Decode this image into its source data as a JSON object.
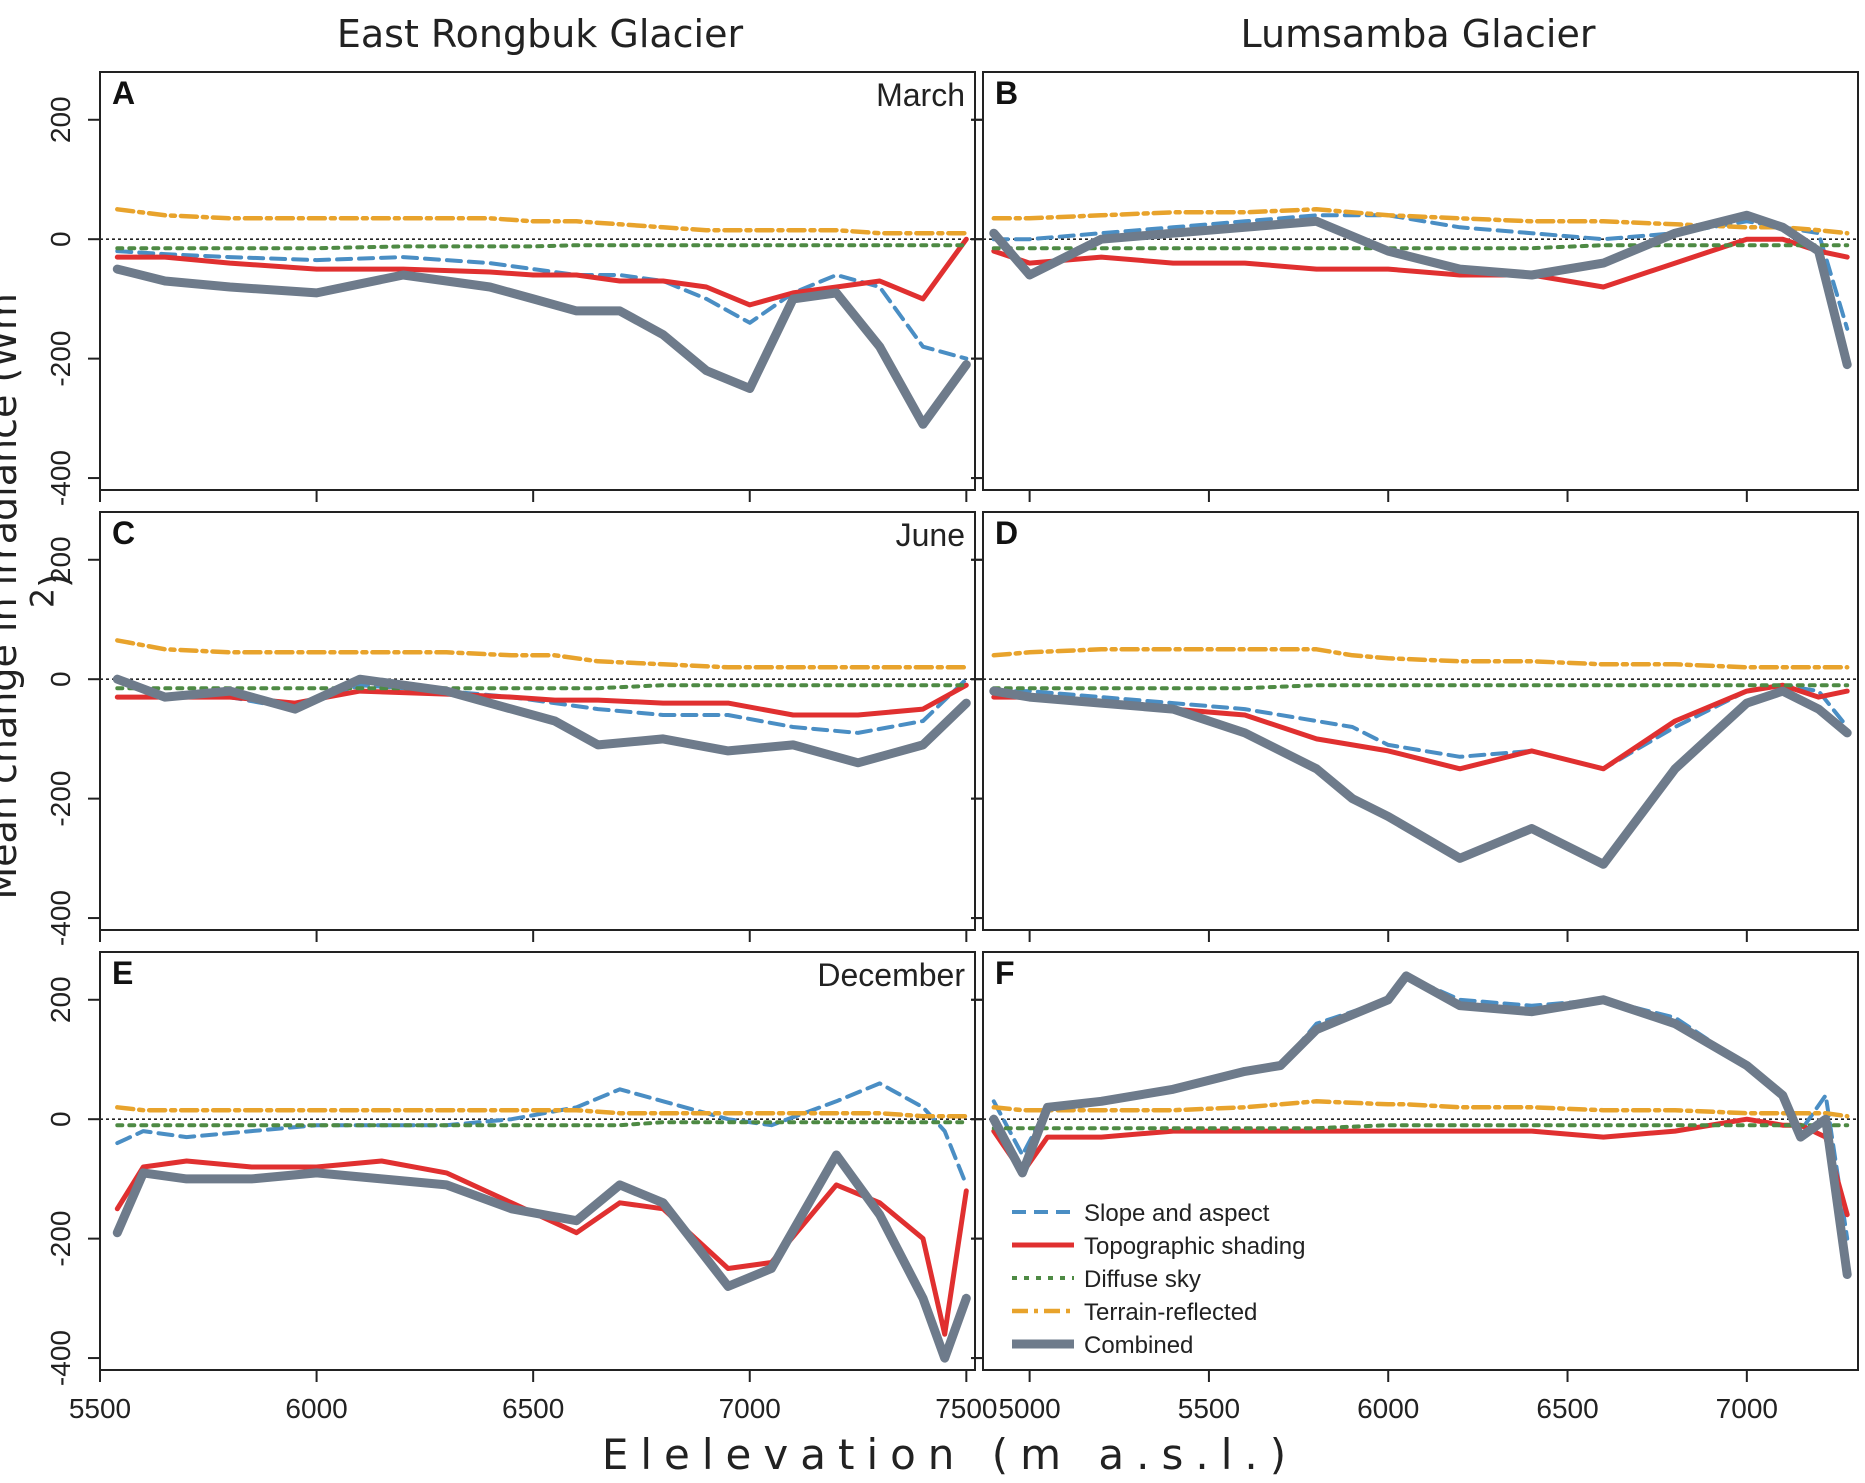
{
  "column_titles": [
    "East Rongbuk Glacier",
    "Lumsamba Glacier"
  ],
  "ylabel": "Mean change in irradiance (Wm",
  "ylabel_sup": "-2",
  "ylabel_tail": ")",
  "xlabel": "Elelevation   (m a.s.l.)",
  "colors": {
    "slope": "#4a8ec4",
    "shading": "#e03030",
    "diffuse": "#4e8a44",
    "terrain": "#e8a32c",
    "combined": "#6e7b8b"
  },
  "legend": {
    "entries": [
      "Slope and aspect",
      "Topographic shading",
      "Diffuse sky",
      "Terrain-reflected",
      "Combined"
    ]
  },
  "chart_data": [
    {
      "type": "line",
      "panel": "A",
      "month": "March",
      "glacier": "East Rongbuk Glacier",
      "x": [
        5540,
        5650,
        5800,
        6000,
        6200,
        6400,
        6500,
        6600,
        6700,
        6800,
        6900,
        7000,
        7100,
        7200,
        7300,
        7400,
        7500
      ],
      "series": [
        {
          "name": "Slope and aspect",
          "values": [
            -20,
            -25,
            -30,
            -35,
            -30,
            -40,
            -50,
            -60,
            -60,
            -70,
            -100,
            -140,
            -90,
            -60,
            -80,
            -180,
            -200
          ]
        },
        {
          "name": "Topographic shading",
          "values": [
            -30,
            -30,
            -40,
            -50,
            -50,
            -55,
            -60,
            -60,
            -70,
            -70,
            -80,
            -110,
            -90,
            -80,
            -70,
            -100,
            0
          ]
        },
        {
          "name": "Diffuse sky",
          "values": [
            -15,
            -15,
            -15,
            -15,
            -12,
            -12,
            -12,
            -10,
            -10,
            -10,
            -10,
            -10,
            -10,
            -10,
            -10,
            -10,
            -10
          ]
        },
        {
          "name": "Terrain-reflected",
          "values": [
            50,
            40,
            35,
            35,
            35,
            35,
            30,
            30,
            25,
            20,
            15,
            15,
            15,
            15,
            10,
            10,
            10
          ]
        },
        {
          "name": "Combined",
          "values": [
            -50,
            -70,
            -80,
            -90,
            -60,
            -80,
            -100,
            -120,
            -120,
            -160,
            -220,
            -250,
            -100,
            -90,
            -180,
            -310,
            -210
          ]
        }
      ],
      "xlim": [
        5500,
        7520
      ],
      "ylim": [
        -420,
        280
      ],
      "yticks": [
        -400,
        -200,
        0,
        200
      ],
      "xticks": [
        5500,
        6000,
        6500,
        7000,
        7500
      ]
    },
    {
      "type": "line",
      "panel": "B",
      "month": "",
      "glacier": "Lumsamba Glacier",
      "x": [
        4900,
        5000,
        5200,
        5400,
        5600,
        5800,
        6000,
        6200,
        6400,
        6600,
        6800,
        7000,
        7100,
        7200,
        7280
      ],
      "series": [
        {
          "name": "Slope and aspect",
          "values": [
            0,
            0,
            10,
            20,
            30,
            40,
            40,
            20,
            10,
            0,
            10,
            30,
            20,
            10,
            -150
          ]
        },
        {
          "name": "Topographic shading",
          "values": [
            -20,
            -40,
            -30,
            -40,
            -40,
            -50,
            -50,
            -60,
            -60,
            -80,
            -40,
            0,
            0,
            -20,
            -30
          ]
        },
        {
          "name": "Diffuse sky",
          "values": [
            -15,
            -15,
            -15,
            -15,
            -15,
            -15,
            -15,
            -15,
            -15,
            -10,
            -10,
            -10,
            -10,
            -10,
            -10
          ]
        },
        {
          "name": "Terrain-reflected",
          "values": [
            35,
            35,
            40,
            45,
            45,
            50,
            40,
            35,
            30,
            30,
            25,
            20,
            20,
            15,
            10
          ]
        },
        {
          "name": "Combined",
          "values": [
            10,
            -60,
            0,
            10,
            20,
            30,
            -20,
            -50,
            -60,
            -40,
            10,
            40,
            20,
            -20,
            -210
          ]
        }
      ],
      "xlim": [
        4870,
        7310
      ],
      "ylim": [
        -420,
        280
      ],
      "yticks": [
        -400,
        -200,
        0,
        200
      ],
      "xticks": [
        5000,
        5500,
        6000,
        6500,
        7000
      ]
    },
    {
      "type": "line",
      "panel": "C",
      "month": "June",
      "glacier": "East Rongbuk Glacier",
      "x": [
        5540,
        5650,
        5800,
        5950,
        6100,
        6300,
        6450,
        6550,
        6650,
        6800,
        6950,
        7100,
        7250,
        7400,
        7500
      ],
      "series": [
        {
          "name": "Slope and aspect",
          "values": [
            -30,
            -30,
            -30,
            -50,
            -10,
            -20,
            -30,
            -40,
            -50,
            -60,
            -60,
            -80,
            -90,
            -70,
            0
          ]
        },
        {
          "name": "Topographic shading",
          "values": [
            -30,
            -30,
            -30,
            -40,
            -20,
            -25,
            -30,
            -35,
            -35,
            -40,
            -40,
            -60,
            -60,
            -50,
            -10
          ]
        },
        {
          "name": "Diffuse sky",
          "values": [
            -15,
            -15,
            -15,
            -15,
            -15,
            -15,
            -15,
            -15,
            -15,
            -10,
            -10,
            -10,
            -10,
            -10,
            -10
          ]
        },
        {
          "name": "Terrain-reflected",
          "values": [
            65,
            50,
            45,
            45,
            45,
            45,
            40,
            40,
            30,
            25,
            20,
            20,
            20,
            20,
            20
          ]
        },
        {
          "name": "Combined",
          "values": [
            0,
            -30,
            -20,
            -50,
            0,
            -20,
            -50,
            -70,
            -110,
            -100,
            -120,
            -110,
            -140,
            -110,
            -40
          ]
        }
      ],
      "xlim": [
        5500,
        7520
      ],
      "ylim": [
        -420,
        280
      ],
      "yticks": [
        -400,
        -200,
        0,
        200
      ],
      "xticks": [
        5500,
        6000,
        6500,
        7000,
        7500
      ]
    },
    {
      "type": "line",
      "panel": "D",
      "month": "",
      "glacier": "Lumsamba Glacier",
      "x": [
        4900,
        5000,
        5200,
        5400,
        5600,
        5800,
        5900,
        6000,
        6200,
        6400,
        6600,
        6800,
        7000,
        7100,
        7200,
        7280
      ],
      "series": [
        {
          "name": "Slope and aspect",
          "values": [
            -20,
            -20,
            -30,
            -40,
            -50,
            -70,
            -80,
            -110,
            -130,
            -120,
            -150,
            -80,
            -20,
            -10,
            -20,
            -80
          ]
        },
        {
          "name": "Topographic shading",
          "values": [
            -30,
            -30,
            -40,
            -50,
            -60,
            -100,
            -110,
            -120,
            -150,
            -120,
            -150,
            -70,
            -20,
            -10,
            -30,
            -20
          ]
        },
        {
          "name": "Diffuse sky",
          "values": [
            -15,
            -15,
            -15,
            -15,
            -15,
            -10,
            -10,
            -10,
            -10,
            -10,
            -10,
            -10,
            -10,
            -10,
            -10,
            -10
          ]
        },
        {
          "name": "Terrain-reflected",
          "values": [
            40,
            45,
            50,
            50,
            50,
            50,
            40,
            35,
            30,
            30,
            25,
            25,
            20,
            20,
            20,
            20
          ]
        },
        {
          "name": "Combined",
          "values": [
            -20,
            -30,
            -40,
            -50,
            -90,
            -150,
            -200,
            -230,
            -300,
            -250,
            -310,
            -150,
            -40,
            -20,
            -50,
            -90
          ]
        }
      ],
      "xlim": [
        4870,
        7310
      ],
      "ylim": [
        -420,
        280
      ],
      "yticks": [
        -400,
        -200,
        0,
        200
      ],
      "xticks": [
        5000,
        5500,
        6000,
        6500,
        7000
      ]
    },
    {
      "type": "line",
      "panel": "E",
      "month": "December",
      "glacier": "East Rongbuk Glacier",
      "x": [
        5540,
        5600,
        5700,
        5850,
        6000,
        6150,
        6300,
        6450,
        6600,
        6700,
        6800,
        6950,
        7050,
        7200,
        7300,
        7400,
        7450,
        7500
      ],
      "series": [
        {
          "name": "Slope and aspect",
          "values": [
            -40,
            -20,
            -30,
            -20,
            -10,
            -10,
            -10,
            0,
            20,
            50,
            30,
            0,
            -10,
            30,
            60,
            20,
            -20,
            -110
          ]
        },
        {
          "name": "Topographic shading",
          "values": [
            -150,
            -80,
            -70,
            -80,
            -80,
            -70,
            -90,
            -140,
            -190,
            -140,
            -150,
            -250,
            -240,
            -110,
            -140,
            -200,
            -360,
            -120
          ]
        },
        {
          "name": "Diffuse sky",
          "values": [
            -10,
            -10,
            -10,
            -10,
            -10,
            -10,
            -10,
            -10,
            -10,
            -10,
            -5,
            -5,
            -5,
            -5,
            -5,
            -5,
            -5,
            -5
          ]
        },
        {
          "name": "Terrain-reflected",
          "values": [
            20,
            15,
            15,
            15,
            15,
            15,
            15,
            15,
            15,
            10,
            10,
            10,
            10,
            10,
            10,
            5,
            5,
            5
          ]
        },
        {
          "name": "Combined",
          "values": [
            -190,
            -90,
            -100,
            -100,
            -90,
            -100,
            -110,
            -150,
            -170,
            -110,
            -140,
            -280,
            -250,
            -60,
            -160,
            -300,
            -400,
            -300
          ]
        }
      ],
      "xlim": [
        5500,
        7520
      ],
      "ylim": [
        -420,
        280
      ],
      "yticks": [
        -400,
        -200,
        0,
        200
      ],
      "xticks": [
        5500,
        6000,
        6500,
        7000,
        7500
      ]
    },
    {
      "type": "line",
      "panel": "F",
      "month": "",
      "glacier": "Lumsamba Glacier",
      "x": [
        4900,
        4980,
        5050,
        5200,
        5400,
        5600,
        5700,
        5800,
        6000,
        6050,
        6200,
        6400,
        6600,
        6800,
        7000,
        7100,
        7150,
        7220,
        7280
      ],
      "series": [
        {
          "name": "Slope and aspect",
          "values": [
            30,
            -60,
            20,
            30,
            50,
            80,
            90,
            160,
            200,
            240,
            200,
            190,
            200,
            170,
            90,
            40,
            -20,
            40,
            -200
          ]
        },
        {
          "name": "Topographic shading",
          "values": [
            -20,
            -90,
            -30,
            -30,
            -20,
            -20,
            -20,
            -20,
            -20,
            -20,
            -20,
            -20,
            -30,
            -20,
            0,
            -10,
            -10,
            -30,
            -160
          ]
        },
        {
          "name": "Diffuse sky",
          "values": [
            -15,
            -15,
            -15,
            -15,
            -15,
            -15,
            -15,
            -15,
            -10,
            -10,
            -10,
            -10,
            -10,
            -10,
            -10,
            -10,
            -10,
            -10,
            -10
          ]
        },
        {
          "name": "Terrain-reflected",
          "values": [
            20,
            15,
            15,
            15,
            15,
            20,
            25,
            30,
            25,
            25,
            20,
            20,
            15,
            15,
            10,
            10,
            10,
            10,
            5
          ]
        },
        {
          "name": "Combined",
          "values": [
            0,
            -90,
            20,
            30,
            50,
            80,
            90,
            150,
            200,
            240,
            190,
            180,
            200,
            160,
            90,
            40,
            -30,
            0,
            -260
          ]
        }
      ],
      "xlim": [
        4870,
        7310
      ],
      "ylim": [
        -420,
        280
      ],
      "yticks": [
        -400,
        -200,
        0,
        200
      ],
      "xticks": [
        5000,
        5500,
        6000,
        6500,
        7000
      ]
    }
  ]
}
